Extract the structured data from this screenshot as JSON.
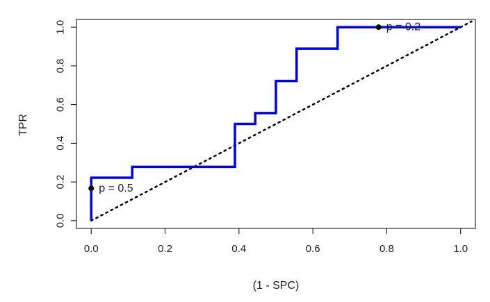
{
  "chart_data": {
    "type": "line",
    "title": "",
    "xlabel": "(1 - SPC)",
    "ylabel": "TPR",
    "xlim": [
      -0.04,
      1.04
    ],
    "ylim": [
      -0.04,
      1.04
    ],
    "x_ticks": [
      0.0,
      0.2,
      0.4,
      0.6,
      0.8,
      1.0
    ],
    "y_ticks": [
      0.0,
      0.2,
      0.4,
      0.6,
      0.8,
      1.0
    ],
    "x_tick_labels": [
      "0.0",
      "0.2",
      "0.4",
      "0.6",
      "0.8",
      "1.0"
    ],
    "y_tick_labels": [
      "0.0",
      "0.2",
      "0.4",
      "0.6",
      "0.8",
      "1.0"
    ],
    "grid": false,
    "legend": "none",
    "series": [
      {
        "style": "step",
        "color": "#0000ee",
        "points": [
          [
            0.0,
            0.0
          ],
          [
            0.0,
            0.222
          ],
          [
            0.111,
            0.222
          ],
          [
            0.111,
            0.278
          ],
          [
            0.389,
            0.278
          ],
          [
            0.389,
            0.5
          ],
          [
            0.444,
            0.5
          ],
          [
            0.444,
            0.556
          ],
          [
            0.5,
            0.556
          ],
          [
            0.5,
            0.722
          ],
          [
            0.556,
            0.722
          ],
          [
            0.556,
            0.889
          ],
          [
            0.667,
            0.889
          ],
          [
            0.667,
            1.0
          ],
          [
            1.0,
            1.0
          ]
        ]
      },
      {
        "style": "dotted",
        "color": "#000000",
        "points": [
          [
            0.0,
            0.0
          ],
          [
            1.03,
            1.03
          ]
        ]
      }
    ],
    "annotations": [
      {
        "x": 0.0,
        "y": 0.167,
        "text": "p = 0.5"
      },
      {
        "x": 0.778,
        "y": 1.0,
        "text": "p = 0.2"
      }
    ]
  }
}
